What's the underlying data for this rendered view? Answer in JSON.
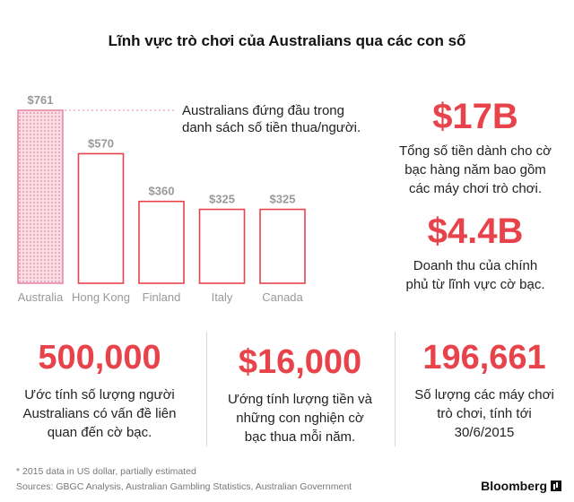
{
  "title": "Lĩnh vực trò chơi của Australians qua các con số",
  "chart_data": {
    "type": "bar",
    "categories": [
      "Australia",
      "Hong Kong",
      "Finland",
      "Italy",
      "Canada"
    ],
    "values": [
      761,
      570,
      360,
      325,
      325
    ],
    "value_labels": [
      "$761",
      "$570",
      "$360",
      "$325",
      "$325"
    ],
    "highlight_index": 0,
    "annotation": "Australians đứng đầu trong danh sách số tiền thua/người.",
    "colors": {
      "accent": "#e8434b",
      "highlight_fill": "#f6c6d3",
      "label": "#999999"
    }
  },
  "stats": {
    "s1": {
      "value": "$17B",
      "desc": "Tổng số tiền dành cho cờ bạc hàng năm bao gồm các máy chơi trò chơi."
    },
    "s2": {
      "value": "$4.4B",
      "desc": "Doanh thu của chính phủ từ lĩnh vực cờ bạc."
    },
    "s3": {
      "value": "500,000",
      "desc": "Ước tính số lượng người Australians  có vấn đề liên quan đến cờ bạc."
    },
    "s4": {
      "value": "$16,000",
      "desc": "Ướng tính lượng tiền và những con nghiện cờ bạc thua mỗi năm."
    },
    "s5": {
      "value": "196,661",
      "desc": "Số lượng các máy chơi trò chơi, tính tới 30/6/2015"
    }
  },
  "footnote": "* 2015 data in US dollar, partially estimated",
  "sources": "Sources: GBGC Analysis, Australian Gambling Statistics, Australian Government",
  "brand": "Bloomberg"
}
